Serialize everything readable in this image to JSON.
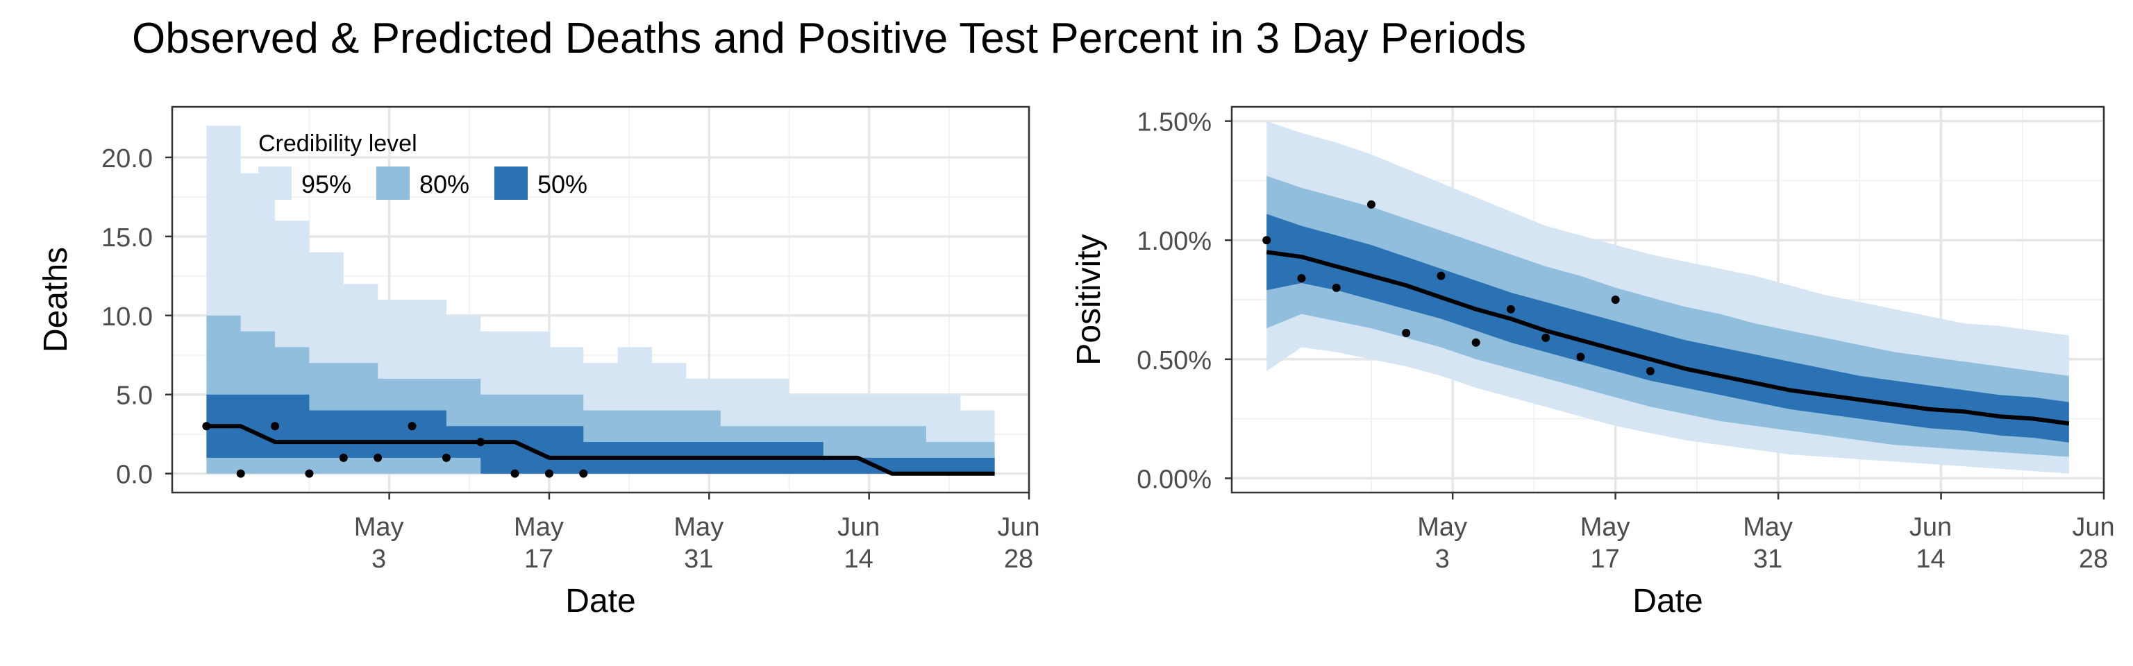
{
  "title": "Observed & Predicted Deaths and Positive Test Percent in 3 Day Periods",
  "colors": {
    "band95": "#d6e5f4",
    "band80": "#92bedd",
    "band50": "#2b72b4",
    "median": "#000000",
    "grid_major": "#e6e6e6",
    "grid_minor": "#f2f2f2",
    "frame": "#333333",
    "tick_text": "#4d4d4d"
  },
  "chart_data": [
    {
      "type": "area",
      "id": "deaths",
      "xlabel": "Date",
      "ylabel": "Deaths",
      "xlim": [
        "2021-04-14",
        "2021-06-28"
      ],
      "ylim": [
        -1.2,
        23.2
      ],
      "xticks": [
        {
          "date": "2021-05-03",
          "line1": "May",
          "line2": "3"
        },
        {
          "date": "2021-05-17",
          "line1": "May",
          "line2": "17"
        },
        {
          "date": "2021-05-31",
          "line1": "May",
          "line2": "31"
        },
        {
          "date": "2021-06-14",
          "line1": "Jun",
          "line2": "14"
        },
        {
          "date": "2021-06-28",
          "line1": "Jun",
          "line2": "28"
        }
      ],
      "yticks": [
        {
          "value": 0,
          "label": "0.0"
        },
        {
          "value": 5,
          "label": "5.0"
        },
        {
          "value": 10,
          "label": "10.0"
        },
        {
          "value": 15,
          "label": "15.0"
        },
        {
          "value": 20,
          "label": "20.0"
        }
      ],
      "legend": {
        "title": "Credibility level",
        "position": "top-left",
        "items": [
          {
            "label": "95%",
            "color_key": "band95"
          },
          {
            "label": "80%",
            "color_key": "band80"
          },
          {
            "label": "50%",
            "color_key": "band50"
          }
        ]
      },
      "series": {
        "x": [
          "2021-04-17",
          "2021-04-20",
          "2021-04-23",
          "2021-04-26",
          "2021-04-29",
          "2021-05-02",
          "2021-05-05",
          "2021-05-08",
          "2021-05-11",
          "2021-05-14",
          "2021-05-17",
          "2021-05-20",
          "2021-05-23",
          "2021-05-26",
          "2021-05-29",
          "2021-06-01",
          "2021-06-04",
          "2021-06-07",
          "2021-06-10",
          "2021-06-13",
          "2021-06-16",
          "2021-06-19",
          "2021-06-22",
          "2021-06-25"
        ],
        "lower95": [
          0,
          0,
          0,
          0,
          0,
          0,
          0,
          0,
          0,
          0,
          0,
          0,
          0,
          0,
          0,
          0,
          0,
          0,
          0,
          0,
          0,
          0,
          0,
          0
        ],
        "upper95": [
          22,
          19,
          16,
          14,
          12,
          11,
          11,
          10,
          9,
          9,
          8,
          7,
          8,
          7,
          6,
          6,
          6,
          5,
          5,
          5,
          5,
          5,
          4,
          4
        ],
        "lower80": [
          0,
          0,
          0,
          0,
          0,
          0,
          0,
          0,
          0,
          0,
          0,
          0,
          0,
          0,
          0,
          0,
          0,
          0,
          0,
          0,
          0,
          0,
          0,
          0
        ],
        "upper80": [
          10,
          9,
          8,
          7,
          7,
          6,
          6,
          6,
          5,
          5,
          5,
          4,
          4,
          4,
          4,
          3,
          3,
          3,
          3,
          3,
          3,
          2,
          2,
          2
        ],
        "lower50": [
          1,
          1,
          1,
          1,
          1,
          1,
          1,
          1,
          0,
          0,
          0,
          0,
          0,
          0,
          0,
          0,
          0,
          0,
          0,
          0,
          0,
          0,
          0,
          0
        ],
        "upper50": [
          5,
          5,
          5,
          4,
          4,
          4,
          4,
          3,
          3,
          3,
          3,
          2,
          2,
          2,
          2,
          2,
          2,
          2,
          1,
          1,
          1,
          1,
          1,
          1
        ],
        "median": [
          3,
          3,
          2,
          2,
          2,
          2,
          2,
          2,
          2,
          2,
          1,
          1,
          1,
          1,
          1,
          1,
          1,
          1,
          1,
          1,
          0,
          0,
          0,
          0
        ]
      },
      "observed": [
        {
          "x": "2021-04-17",
          "y": 3
        },
        {
          "x": "2021-04-20",
          "y": 0
        },
        {
          "x": "2021-04-23",
          "y": 3
        },
        {
          "x": "2021-04-26",
          "y": 0
        },
        {
          "x": "2021-04-29",
          "y": 1
        },
        {
          "x": "2021-05-02",
          "y": 1
        },
        {
          "x": "2021-05-05",
          "y": 3
        },
        {
          "x": "2021-05-08",
          "y": 1
        },
        {
          "x": "2021-05-11",
          "y": 2
        },
        {
          "x": "2021-05-14",
          "y": 0
        },
        {
          "x": "2021-05-17",
          "y": 0
        },
        {
          "x": "2021-05-20",
          "y": 0
        }
      ]
    },
    {
      "type": "area",
      "id": "positivity",
      "xlabel": "Date",
      "ylabel": "Positivity",
      "xlim": [
        "2021-04-14",
        "2021-06-28"
      ],
      "ylim": [
        -0.0006,
        0.0156
      ],
      "xticks": [
        {
          "date": "2021-05-03",
          "line1": "May",
          "line2": "3"
        },
        {
          "date": "2021-05-17",
          "line1": "May",
          "line2": "17"
        },
        {
          "date": "2021-05-31",
          "line1": "May",
          "line2": "31"
        },
        {
          "date": "2021-06-14",
          "line1": "Jun",
          "line2": "14"
        },
        {
          "date": "2021-06-28",
          "line1": "Jun",
          "line2": "28"
        }
      ],
      "yticks": [
        {
          "value": 0,
          "label": "0.00%"
        },
        {
          "value": 0.005,
          "label": "0.50%"
        },
        {
          "value": 0.01,
          "label": "1.00%"
        },
        {
          "value": 0.015,
          "label": "1.50%"
        }
      ],
      "series": {
        "x": [
          "2021-04-17",
          "2021-04-20",
          "2021-04-23",
          "2021-04-26",
          "2021-04-29",
          "2021-05-02",
          "2021-05-05",
          "2021-05-08",
          "2021-05-11",
          "2021-05-14",
          "2021-05-17",
          "2021-05-20",
          "2021-05-23",
          "2021-05-26",
          "2021-05-29",
          "2021-06-01",
          "2021-06-04",
          "2021-06-07",
          "2021-06-10",
          "2021-06-13",
          "2021-06-16",
          "2021-06-19",
          "2021-06-22",
          "2021-06-25"
        ],
        "lower95": [
          0.0045,
          0.0055,
          0.0053,
          0.005,
          0.0047,
          0.0043,
          0.0038,
          0.0034,
          0.003,
          0.0026,
          0.0022,
          0.0019,
          0.0016,
          0.0014,
          0.0012,
          0.001,
          0.0009,
          0.0008,
          0.0007,
          0.0006,
          0.0005,
          0.0004,
          0.0003,
          0.0002
        ],
        "upper95": [
          0.015,
          0.0145,
          0.0141,
          0.0136,
          0.013,
          0.0124,
          0.0118,
          0.0112,
          0.0106,
          0.0102,
          0.0098,
          0.0094,
          0.0091,
          0.0088,
          0.0085,
          0.0081,
          0.0077,
          0.0074,
          0.0071,
          0.0068,
          0.0065,
          0.0064,
          0.0062,
          0.006
        ],
        "lower80": [
          0.0063,
          0.0069,
          0.0066,
          0.0063,
          0.0059,
          0.0055,
          0.005,
          0.0046,
          0.0042,
          0.0038,
          0.0034,
          0.003,
          0.0027,
          0.0024,
          0.0022,
          0.002,
          0.0018,
          0.0016,
          0.0014,
          0.0013,
          0.0012,
          0.0011,
          0.001,
          0.0009
        ],
        "upper80": [
          0.0127,
          0.0122,
          0.0118,
          0.0114,
          0.0109,
          0.0104,
          0.0099,
          0.0094,
          0.0089,
          0.0085,
          0.008,
          0.0076,
          0.0072,
          0.0069,
          0.0065,
          0.0062,
          0.0059,
          0.0056,
          0.0053,
          0.0051,
          0.0049,
          0.0047,
          0.0045,
          0.0043
        ],
        "lower50": [
          0.0079,
          0.0082,
          0.0079,
          0.0075,
          0.0071,
          0.0067,
          0.0062,
          0.0057,
          0.0053,
          0.0049,
          0.0045,
          0.0041,
          0.0038,
          0.0035,
          0.0032,
          0.0029,
          0.0027,
          0.0025,
          0.0023,
          0.0021,
          0.002,
          0.0018,
          0.0017,
          0.0015
        ],
        "upper50": [
          0.0111,
          0.0106,
          0.0102,
          0.0098,
          0.0093,
          0.0088,
          0.0083,
          0.0078,
          0.0074,
          0.007,
          0.0066,
          0.0062,
          0.0058,
          0.0055,
          0.0052,
          0.0049,
          0.0046,
          0.0043,
          0.0041,
          0.0039,
          0.0037,
          0.0035,
          0.0034,
          0.0032
        ],
        "median": [
          0.0095,
          0.0093,
          0.0089,
          0.0085,
          0.0081,
          0.0076,
          0.0071,
          0.0067,
          0.0062,
          0.0058,
          0.0054,
          0.005,
          0.0046,
          0.0043,
          0.004,
          0.0037,
          0.0035,
          0.0033,
          0.0031,
          0.0029,
          0.0028,
          0.0026,
          0.0025,
          0.0023
        ]
      },
      "observed": [
        {
          "x": "2021-04-17",
          "y": 0.01
        },
        {
          "x": "2021-04-20",
          "y": 0.0084
        },
        {
          "x": "2021-04-23",
          "y": 0.008
        },
        {
          "x": "2021-04-26",
          "y": 0.0115
        },
        {
          "x": "2021-04-29",
          "y": 0.0061
        },
        {
          "x": "2021-05-02",
          "y": 0.0085
        },
        {
          "x": "2021-05-05",
          "y": 0.0057
        },
        {
          "x": "2021-05-08",
          "y": 0.0071
        },
        {
          "x": "2021-05-11",
          "y": 0.0059
        },
        {
          "x": "2021-05-14",
          "y": 0.0051
        },
        {
          "x": "2021-05-17",
          "y": 0.0075
        },
        {
          "x": "2021-05-20",
          "y": 0.0045
        }
      ]
    }
  ]
}
